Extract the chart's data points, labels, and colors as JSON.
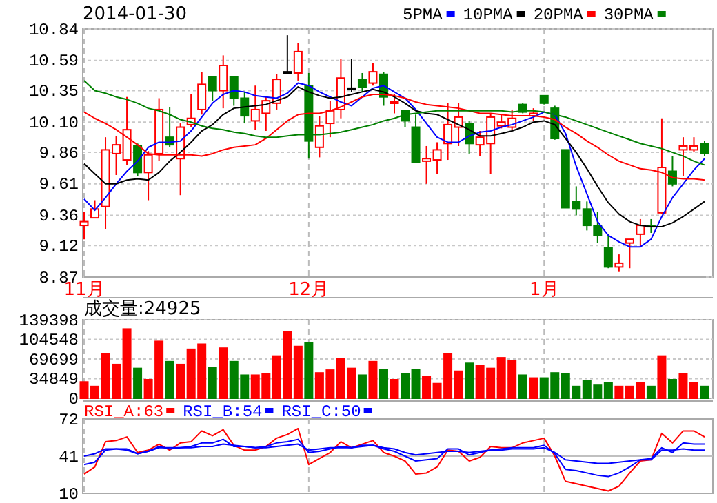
{
  "chart_data": [
    {
      "type": "candlestick",
      "title": "2014-01-30",
      "legend": "top right",
      "grid": true,
      "categories": [
        "11月",
        null,
        null,
        null,
        null,
        null,
        null,
        null,
        null,
        null,
        null,
        null,
        null,
        null,
        null,
        null,
        null,
        null,
        null,
        null,
        null,
        "12月",
        null,
        null,
        null,
        null,
        null,
        null,
        null,
        null,
        null,
        null,
        null,
        null,
        null,
        null,
        null,
        null,
        null,
        null,
        null,
        null,
        null,
        "1月",
        null,
        null,
        null,
        null,
        null,
        null,
        null,
        null,
        null,
        null,
        null,
        null,
        null,
        null,
        null
      ],
      "ylim": [
        8.87,
        10.84
      ],
      "yticks": [
        8.87,
        9.12,
        9.36,
        9.61,
        9.86,
        {
          "value": 10.1,
          "label": "10.10"
        },
        10.35,
        10.59,
        10.84
      ],
      "ohlc": [
        [
          9.28,
          9.39,
          9.17,
          9.31
        ],
        [
          9.34,
          9.48,
          9.34,
          9.41
        ],
        [
          9.43,
          9.98,
          9.25,
          9.88
        ],
        [
          9.85,
          9.99,
          9.68,
          9.92
        ],
        [
          9.8,
          10.3,
          9.76,
          10.04
        ],
        [
          9.91,
          9.93,
          9.67,
          9.7
        ],
        [
          9.7,
          9.87,
          9.48,
          9.84
        ],
        [
          9.85,
          10.29,
          9.79,
          10.2
        ],
        [
          9.98,
          10.22,
          9.9,
          9.92
        ],
        [
          9.81,
          10.09,
          9.52,
          10.06
        ],
        [
          10.08,
          10.32,
          10.06,
          10.13
        ],
        [
          10.2,
          10.5,
          10.16,
          10.4
        ],
        [
          10.46,
          10.46,
          10.27,
          10.35
        ],
        [
          10.35,
          10.63,
          10.21,
          10.55
        ],
        [
          10.46,
          10.46,
          10.23,
          10.29
        ],
        [
          10.29,
          10.34,
          10.09,
          10.15
        ],
        [
          10.11,
          10.39,
          10.04,
          10.2
        ],
        [
          10.17,
          10.3,
          10.03,
          10.27
        ],
        [
          10.25,
          10.48,
          10.2,
          10.44
        ],
        [
          10.5,
          10.79,
          10.49,
          10.5
        ],
        [
          10.49,
          10.73,
          10.43,
          10.66
        ],
        [
          10.39,
          10.49,
          9.81,
          9.95
        ],
        [
          9.9,
          10.15,
          9.82,
          10.07
        ],
        [
          10.09,
          10.27,
          9.98,
          10.19
        ],
        [
          10.2,
          10.6,
          10.13,
          10.45
        ],
        [
          10.37,
          10.6,
          10.34,
          10.37
        ],
        [
          10.44,
          10.49,
          10.34,
          10.38
        ],
        [
          10.41,
          10.57,
          10.39,
          10.5
        ],
        [
          10.48,
          10.5,
          10.23,
          10.3
        ],
        [
          10.25,
          10.32,
          10.17,
          10.26
        ],
        [
          10.19,
          10.19,
          10.06,
          10.11
        ],
        [
          10.06,
          10.16,
          9.78,
          9.78
        ],
        [
          9.79,
          9.91,
          9.61,
          9.81
        ],
        [
          9.8,
          9.94,
          9.69,
          9.88
        ],
        [
          9.93,
          10.25,
          9.8,
          10.08
        ],
        [
          10.06,
          10.25,
          9.91,
          10.14
        ],
        [
          10.09,
          10.11,
          9.85,
          9.93
        ],
        [
          9.92,
          10.03,
          9.83,
          9.98
        ],
        [
          9.93,
          10.17,
          9.69,
          10.14
        ],
        [
          10.07,
          10.16,
          10.05,
          10.1
        ],
        [
          10.06,
          10.2,
          10.04,
          10.13
        ],
        [
          10.24,
          10.25,
          10.17,
          10.18
        ],
        [
          10.15,
          10.21,
          10.11,
          10.17
        ],
        [
          10.31,
          10.31,
          10.24,
          10.25
        ],
        [
          10.21,
          10.23,
          9.96,
          9.97
        ],
        [
          9.88,
          9.88,
          9.42,
          9.42
        ],
        [
          9.47,
          9.59,
          9.36,
          9.41
        ],
        [
          9.41,
          9.47,
          9.24,
          9.28
        ],
        [
          9.28,
          9.39,
          9.14,
          9.2
        ],
        [
          9.1,
          9.21,
          8.94,
          8.95
        ],
        [
          8.95,
          9.05,
          8.91,
          8.98
        ],
        [
          9.14,
          9.17,
          8.94,
          9.17
        ],
        [
          9.21,
          9.33,
          9.11,
          9.28
        ],
        [
          9.28,
          9.33,
          9.22,
          9.27
        ],
        [
          9.38,
          10.13,
          9.37,
          9.74
        ],
        [
          9.71,
          9.83,
          9.59,
          9.61
        ],
        [
          9.88,
          9.98,
          9.67,
          9.91
        ],
        [
          9.88,
          9.98,
          9.86,
          9.91
        ],
        [
          9.93,
          9.95,
          9.83,
          9.85
        ]
      ],
      "series": [
        {
          "name": "5PMA",
          "type": "line",
          "color": "#0000ff",
          "values": [
            9.49,
            9.4,
            9.5,
            9.61,
            9.71,
            9.79,
            9.9,
            9.94,
            9.94,
            9.95,
            10.03,
            10.14,
            10.25,
            10.32,
            10.35,
            10.34,
            10.31,
            10.3,
            10.29,
            10.33,
            10.41,
            10.39,
            10.34,
            10.3,
            10.26,
            10.23,
            10.3,
            10.37,
            10.39,
            10.34,
            10.29,
            10.2,
            10.09,
            9.98,
            9.94,
            9.94,
            9.99,
            10.02,
            10.03,
            10.06,
            10.08,
            10.11,
            10.14,
            10.18,
            10.16,
            10.01,
            9.75,
            9.53,
            9.31,
            9.2,
            9.15,
            9.11,
            9.11,
            9.17,
            9.35,
            9.5,
            9.61,
            9.72,
            9.81
          ]
        },
        {
          "name": "10PMA",
          "type": "line",
          "color": "#000000",
          "values": [
            9.77,
            9.69,
            9.61,
            9.61,
            9.64,
            9.65,
            9.64,
            9.7,
            9.79,
            9.86,
            9.94,
            10.03,
            10.08,
            10.16,
            10.21,
            10.22,
            10.23,
            10.24,
            10.27,
            10.3,
            10.38,
            10.34,
            10.31,
            10.29,
            10.3,
            10.32,
            10.34,
            10.36,
            10.34,
            10.3,
            10.25,
            10.19,
            10.17,
            10.16,
            10.12,
            10.08,
            10.04,
            9.99,
            9.99,
            10.01,
            10.03,
            10.06,
            10.1,
            10.11,
            10.08,
            9.97,
            9.86,
            9.73,
            9.59,
            9.46,
            9.37,
            9.31,
            9.28,
            9.27,
            9.27,
            9.3,
            9.35,
            9.41,
            9.47
          ]
        },
        {
          "name": "20PMA",
          "type": "line",
          "color": "#ff0000",
          "values": [
            10.18,
            10.13,
            10.09,
            10.04,
            9.98,
            9.92,
            9.85,
            9.84,
            9.84,
            9.84,
            9.84,
            9.83,
            9.85,
            9.88,
            9.9,
            9.91,
            9.92,
            9.97,
            10.04,
            10.11,
            10.16,
            10.17,
            10.17,
            10.19,
            10.22,
            10.26,
            10.3,
            10.32,
            10.32,
            10.31,
            10.29,
            10.26,
            10.24,
            10.23,
            10.22,
            10.21,
            10.19,
            10.17,
            10.17,
            10.16,
            10.15,
            10.15,
            10.15,
            10.14,
            10.12,
            10.06,
            10.01,
            9.95,
            9.9,
            9.84,
            9.79,
            9.76,
            9.73,
            9.72,
            9.7,
            9.66,
            9.65,
            9.65,
            9.64
          ]
        },
        {
          "name": "30PMA",
          "type": "line",
          "color": "#008000",
          "values": [
            10.43,
            10.35,
            10.33,
            10.3,
            10.28,
            10.25,
            10.21,
            10.19,
            10.16,
            10.12,
            10.1,
            10.07,
            10.05,
            10.04,
            10.02,
            10.01,
            9.99,
            9.98,
            9.98,
            9.99,
            10.0,
            10.0,
            10.0,
            10.01,
            10.02,
            10.04,
            10.06,
            10.08,
            10.11,
            10.13,
            10.16,
            10.17,
            10.18,
            10.19,
            10.19,
            10.19,
            10.19,
            10.19,
            10.19,
            10.19,
            10.18,
            10.19,
            10.19,
            10.18,
            10.16,
            10.14,
            10.11,
            10.08,
            10.05,
            10.02,
            9.99,
            9.96,
            9.93,
            9.91,
            9.89,
            9.86,
            9.83,
            9.79,
            9.76
          ]
        }
      ]
    },
    {
      "type": "bar",
      "title": "成交量:24925",
      "grid": true,
      "tick_labels": "y",
      "categories": [
        null,
        null,
        null,
        null,
        null,
        null,
        null,
        null,
        null,
        null,
        null,
        null,
        null,
        null,
        null,
        null,
        null,
        null,
        null,
        null,
        null,
        null,
        null,
        null,
        null,
        null,
        null,
        null,
        null,
        null,
        null,
        null,
        null,
        null,
        null,
        null,
        null,
        null,
        null,
        null,
        null,
        null,
        null,
        null,
        null,
        null,
        null,
        null,
        null,
        null,
        null,
        null,
        null,
        null,
        null,
        null,
        null,
        null,
        null
      ],
      "ylim": [
        0,
        139398
      ],
      "yticks": [
        0,
        34849,
        69699,
        104548,
        139398
      ],
      "values": [
        29000,
        21000,
        79000,
        60000,
        123000,
        53000,
        33000,
        101000,
        65000,
        60000,
        87000,
        96000,
        55000,
        89000,
        65000,
        41000,
        41000,
        43000,
        75000,
        118000,
        92000,
        99000,
        45000,
        50000,
        70000,
        53000,
        41000,
        65000,
        51000,
        33000,
        44000,
        51000,
        38000,
        26000,
        79000,
        48000,
        62000,
        58000,
        53000,
        72000,
        67000,
        41000,
        36000,
        36000,
        45000,
        43000,
        21000,
        31000,
        23000,
        28000,
        21000,
        21000,
        28000,
        21000,
        75000,
        33000,
        43000,
        28000,
        21000
      ],
      "colors": [
        "#ff0000",
        "#ff0000",
        "#ff0000",
        "#ff0000",
        "#ff0000",
        "#008000",
        "#ff0000",
        "#ff0000",
        "#008000",
        "#ff0000",
        "#ff0000",
        "#ff0000",
        "#008000",
        "#ff0000",
        "#008000",
        "#008000",
        "#ff0000",
        "#ff0000",
        "#ff0000",
        "#ff0000",
        "#ff0000",
        "#008000",
        "#ff0000",
        "#ff0000",
        "#ff0000",
        "#ff0000",
        "#008000",
        "#ff0000",
        "#008000",
        "#ff0000",
        "#008000",
        "#008000",
        "#ff0000",
        "#ff0000",
        "#ff0000",
        "#ff0000",
        "#008000",
        "#ff0000",
        "#ff0000",
        "#ff0000",
        "#ff0000",
        "#008000",
        "#ff0000",
        "#008000",
        "#008000",
        "#008000",
        "#008000",
        "#008000",
        "#008000",
        "#008000",
        "#ff0000",
        "#ff0000",
        "#ff0000",
        "#008000",
        "#ff0000",
        "#008000",
        "#ff0000",
        "#ff0000",
        "#008000"
      ]
    },
    {
      "type": "line",
      "grid": "x",
      "tick_labels": "y",
      "legend": "top left",
      "ref_lines": [
        {
          "axis": "y",
          "value": 41,
          "color": "#c0c0c0"
        }
      ],
      "categories": [
        null,
        null,
        null,
        null,
        null,
        null,
        null,
        null,
        null,
        null,
        null,
        null,
        null,
        null,
        null,
        null,
        null,
        null,
        null,
        null,
        null,
        null,
        null,
        null,
        null,
        null,
        null,
        null,
        null,
        null,
        null,
        null,
        null,
        null,
        null,
        null,
        null,
        null,
        null,
        null,
        null,
        null,
        null,
        null,
        null,
        null,
        null,
        null,
        null,
        null,
        null,
        null,
        null,
        null,
        null,
        null,
        null,
        null,
        null
      ],
      "ylim": [
        10,
        72
      ],
      "yticks": [
        10,
        41,
        72
      ],
      "series": [
        {
          "name": "RSI_A:63",
          "color": "#ff0000",
          "values": [
            26,
            32,
            53,
            54,
            57,
            44,
            46,
            51,
            46,
            52,
            53,
            62,
            58,
            63,
            50,
            46,
            46,
            49,
            56,
            59,
            64,
            34,
            39,
            44,
            53,
            48,
            51,
            54,
            44,
            41,
            37,
            26,
            27,
            32,
            46,
            45,
            37,
            40,
            49,
            48,
            48,
            52,
            54,
            56,
            41,
            20,
            18,
            16,
            14,
            12,
            16,
            27,
            37,
            38,
            60,
            52,
            62,
            62,
            57
          ]
        },
        {
          "name": "RSI_B:54",
          "color": "#0000ff",
          "values": [
            34,
            36,
            46,
            47,
            47,
            43,
            45,
            49,
            47,
            48,
            49,
            52,
            52,
            55,
            49,
            49,
            48,
            49,
            52,
            53,
            55,
            44,
            45,
            47,
            49,
            48,
            50,
            50,
            47,
            45,
            41,
            37,
            38,
            39,
            47,
            47,
            42,
            44,
            46,
            47,
            48,
            48,
            48,
            50,
            43,
            30,
            29,
            27,
            25,
            24,
            27,
            32,
            38,
            39,
            48,
            44,
            52,
            51,
            51
          ]
        },
        {
          "name": "RSI_C:50",
          "color": "#0000ff",
          "values": [
            41,
            43,
            47,
            47,
            46,
            43,
            45,
            48,
            48,
            48,
            48,
            49,
            49,
            51,
            50,
            49,
            48,
            48,
            49,
            50,
            51,
            46,
            47,
            48,
            48,
            48,
            49,
            50,
            48,
            47,
            44,
            42,
            43,
            44,
            45,
            45,
            44,
            45,
            46,
            46,
            47,
            47,
            47,
            48,
            44,
            38,
            37,
            36,
            35,
            35,
            36,
            37,
            38,
            38,
            46,
            46,
            47,
            46,
            46
          ]
        }
      ]
    }
  ]
}
